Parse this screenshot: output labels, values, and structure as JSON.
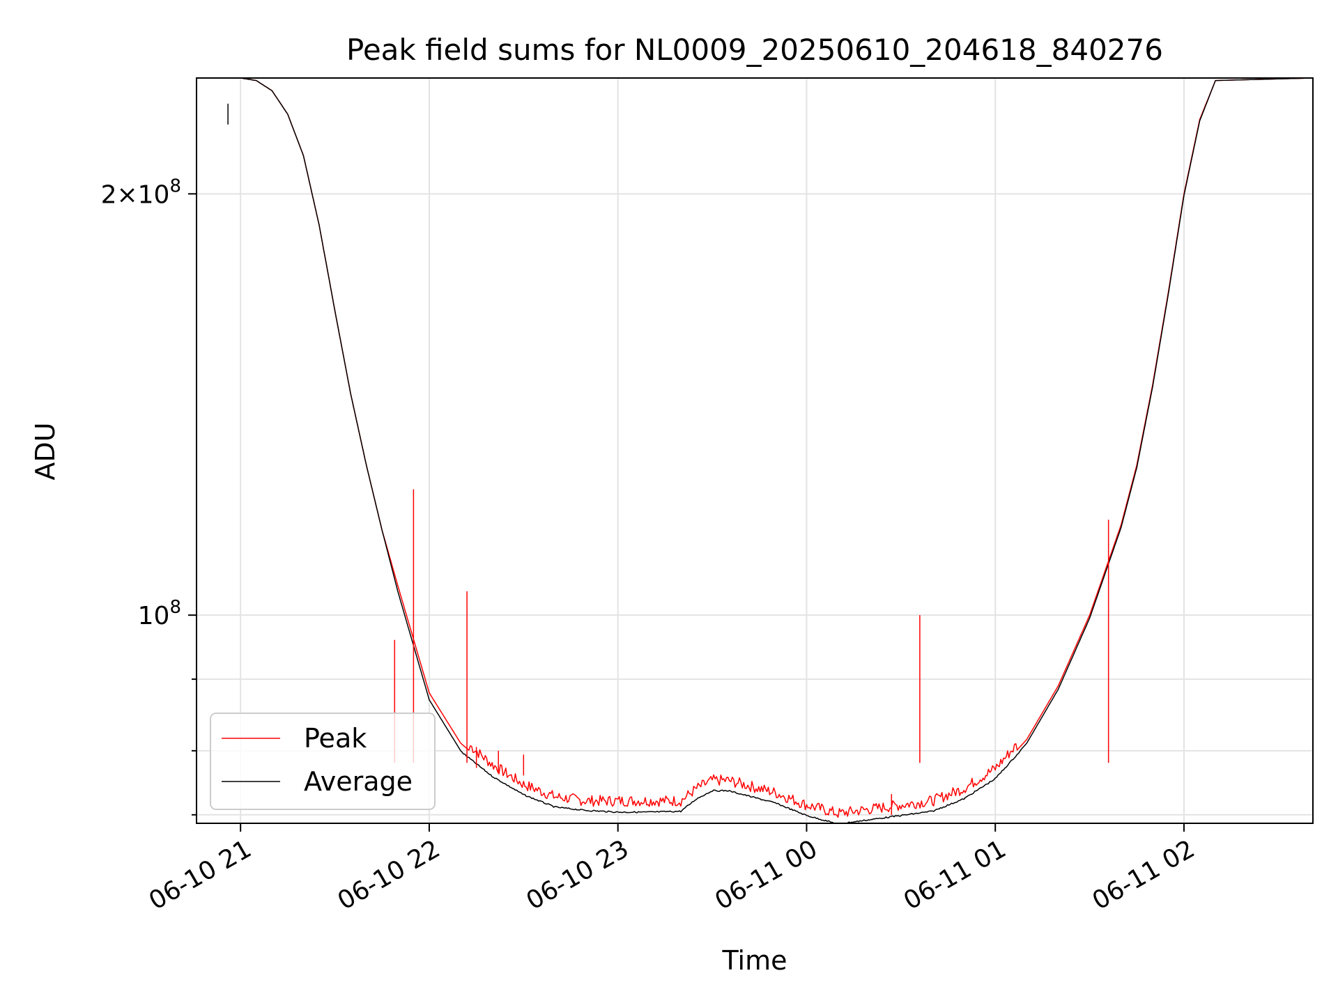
{
  "chart_data": {
    "type": "line",
    "title": "Peak field sums for NL0009_20250610_204618_840276",
    "xlabel": "Time",
    "ylabel": "ADU",
    "yscale": "log",
    "grid": true,
    "legend_position": "lower-left",
    "xlim": [
      "2025-06-10 20:46",
      "2025-06-11 02:41"
    ],
    "ylim": [
      71000000,
      242000000
    ],
    "x_ticks": [
      {
        "t": "2025-06-10 21:00",
        "label": "06-10 21"
      },
      {
        "t": "2025-06-10 22:00",
        "label": "06-10 22"
      },
      {
        "t": "2025-06-10 23:00",
        "label": "06-10 23"
      },
      {
        "t": "2025-06-11 00:00",
        "label": "06-11 00"
      },
      {
        "t": "2025-06-11 01:00",
        "label": "06-11 01"
      },
      {
        "t": "2025-06-11 02:00",
        "label": "06-11 02"
      }
    ],
    "y_major_ticks": [
      {
        "value": 100000000,
        "label": "10^8"
      },
      {
        "value": 200000000,
        "label": "2×10^8"
      }
    ],
    "y_minor_ticks": [
      72000000,
      80000000,
      90000000
    ],
    "series": [
      {
        "name": "Peak",
        "color": "#ff0000",
        "x": [
          "2025-06-10 20:47",
          "2025-06-10 20:50",
          "2025-06-10 20:55",
          "2025-06-10 21:00",
          "2025-06-10 21:05",
          "2025-06-10 21:10",
          "2025-06-10 21:15",
          "2025-06-10 21:20",
          "2025-06-10 21:25",
          "2025-06-10 21:30",
          "2025-06-10 21:35",
          "2025-06-10 21:40",
          "2025-06-10 21:45",
          "2025-06-10 21:50",
          "2025-06-10 22:00",
          "2025-06-10 22:10",
          "2025-06-10 22:20",
          "2025-06-10 22:30",
          "2025-06-10 22:40",
          "2025-06-10 22:50",
          "2025-06-10 23:00",
          "2025-06-10 23:10",
          "2025-06-10 23:20",
          "2025-06-10 23:25",
          "2025-06-10 23:30",
          "2025-06-10 23:35",
          "2025-06-10 23:40",
          "2025-06-10 23:50",
          "2025-06-11 00:00",
          "2025-06-11 00:10",
          "2025-06-11 00:20",
          "2025-06-11 00:30",
          "2025-06-11 00:40",
          "2025-06-11 00:50",
          "2025-06-11 01:00",
          "2025-06-11 01:10",
          "2025-06-11 01:20",
          "2025-06-11 01:30",
          "2025-06-11 01:40",
          "2025-06-11 01:45",
          "2025-06-11 01:50",
          "2025-06-11 01:55",
          "2025-06-11 02:00",
          "2025-06-11 02:05",
          "2025-06-11 02:10",
          "2025-06-11 02:41"
        ],
        "y": [
          242000000,
          242000000,
          242000000,
          242000000,
          241000000,
          237000000,
          228000000,
          213000000,
          190000000,
          165000000,
          144000000,
          128000000,
          115000000,
          105000000,
          88000000,
          81000000,
          77500000,
          75000000,
          73500000,
          73000000,
          73000000,
          73000000,
          73000000,
          74500000,
          75500000,
          75500000,
          75000000,
          74000000,
          72500000,
          71500000,
          72000000,
          72500000,
          73000000,
          74500000,
          77000000,
          81500000,
          89000000,
          100000000,
          116000000,
          128000000,
          146000000,
          170000000,
          200000000,
          226000000,
          241000000,
          242000000
        ]
      },
      {
        "name": "Average",
        "color": "#000000",
        "x": [
          "2025-06-10 20:47",
          "2025-06-10 20:50",
          "2025-06-10 20:55",
          "2025-06-10 21:00",
          "2025-06-10 21:05",
          "2025-06-10 21:10",
          "2025-06-10 21:15",
          "2025-06-10 21:20",
          "2025-06-10 21:25",
          "2025-06-10 21:30",
          "2025-06-10 21:35",
          "2025-06-10 21:40",
          "2025-06-10 21:45",
          "2025-06-10 21:50",
          "2025-06-10 22:00",
          "2025-06-10 22:10",
          "2025-06-10 22:20",
          "2025-06-10 22:30",
          "2025-06-10 22:40",
          "2025-06-10 22:50",
          "2025-06-10 23:00",
          "2025-06-10 23:10",
          "2025-06-10 23:20",
          "2025-06-10 23:25",
          "2025-06-10 23:30",
          "2025-06-10 23:35",
          "2025-06-10 23:40",
          "2025-06-10 23:50",
          "2025-06-11 00:00",
          "2025-06-11 00:10",
          "2025-06-11 00:20",
          "2025-06-11 00:30",
          "2025-06-11 00:40",
          "2025-06-11 00:50",
          "2025-06-11 01:00",
          "2025-06-11 01:10",
          "2025-06-11 01:20",
          "2025-06-11 01:30",
          "2025-06-11 01:40",
          "2025-06-11 01:45",
          "2025-06-11 01:50",
          "2025-06-11 01:55",
          "2025-06-11 02:00",
          "2025-06-11 02:05",
          "2025-06-11 02:10",
          "2025-06-11 02:41"
        ],
        "y": [
          242000000,
          242000000,
          242000000,
          242000000,
          241000000,
          237000000,
          228000000,
          213000000,
          190000000,
          165000000,
          144000000,
          128000000,
          115000000,
          104000000,
          87000000,
          80000000,
          76800000,
          74500000,
          73000000,
          72600000,
          72400000,
          72400000,
          72500000,
          74000000,
          75000000,
          75000000,
          74500000,
          73500000,
          72000000,
          71000000,
          71500000,
          72000000,
          72500000,
          74000000,
          76500000,
          81000000,
          88500000,
          99500000,
          115500000,
          127500000,
          145500000,
          169500000,
          199500000,
          225500000,
          241000000,
          242000000
        ]
      }
    ],
    "spikes": [
      {
        "series": "Peak",
        "x": "2025-06-10 21:49",
        "y": 96000000
      },
      {
        "series": "Peak",
        "x": "2025-06-10 21:55",
        "y": 123000000
      },
      {
        "series": "Peak",
        "x": "2025-06-10 22:12",
        "y": 104000000
      },
      {
        "series": "Peak",
        "x": "2025-06-10 22:15",
        "y": 80500000
      },
      {
        "series": "Peak",
        "x": "2025-06-10 22:22",
        "y": 80000000
      },
      {
        "series": "Peak",
        "x": "2025-06-10 22:30",
        "y": 79500000
      },
      {
        "series": "Peak",
        "x": "2025-06-11 00:27",
        "y": 74500000
      },
      {
        "series": "Peak",
        "x": "2025-06-11 00:36",
        "y": 100000000
      },
      {
        "series": "Peak",
        "x": "2025-06-11 01:36",
        "y": 117000000
      },
      {
        "series": "Average",
        "x": "2025-06-10 20:56",
        "y": 232000000
      }
    ]
  }
}
